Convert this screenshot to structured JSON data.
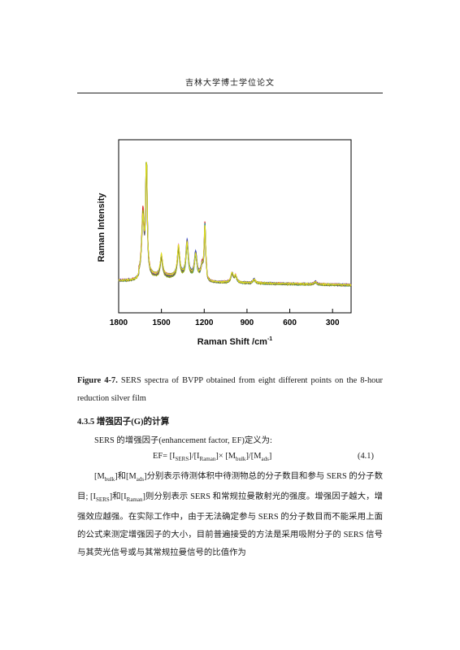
{
  "header": {
    "title": "吉林大学博士学位论文"
  },
  "chart_data": {
    "type": "line",
    "xlabel": "Raman Shift /cm",
    "xlabel_sup": "-1",
    "ylabel": "Raman Intensity",
    "xlim": [
      1800,
      170
    ],
    "x_ticks": [
      "1800",
      "1500",
      "1200",
      "900",
      "600",
      "300"
    ],
    "y_ticks_visible": false,
    "series_count": 8,
    "series_colors": [
      "#111111",
      "#d62020",
      "#2a44c8",
      "#ff33ff",
      "#20a0a0",
      "#9aa000",
      "#606060",
      "#e0e020"
    ],
    "peaks": [
      {
        "x": 1630,
        "y": 0.46
      },
      {
        "x": 1605,
        "y": 0.98
      },
      {
        "x": 1500,
        "y": 0.16
      },
      {
        "x": 1380,
        "y": 0.23
      },
      {
        "x": 1320,
        "y": 0.27
      },
      {
        "x": 1260,
        "y": 0.18
      },
      {
        "x": 1215,
        "y": 0.08
      },
      {
        "x": 1195,
        "y": 0.4
      },
      {
        "x": 1005,
        "y": 0.07
      },
      {
        "x": 980,
        "y": 0.05
      },
      {
        "x": 850,
        "y": 0.03
      },
      {
        "x": 420,
        "y": 0.02
      }
    ]
  },
  "caption": {
    "label": "Figure 4-7.",
    "text": " SERS spectra of BVPP obtained from eight different points on the 8-hour reduction silver film"
  },
  "section": {
    "heading": "4.3.5 增强因子(G)的计算"
  },
  "body": {
    "p1": "SERS 的增强因子(enhancement factor, EF)定义为:",
    "eq_lhs": "EF= [I",
    "eq_sub1": "SERS",
    "eq_mid1": "]/[I",
    "eq_sub2": "Raman",
    "eq_mid2": "]× [M",
    "eq_sub3": "bulk",
    "eq_mid3": "]/[M",
    "eq_sub4": "ads",
    "eq_end": "]",
    "eq_number": "(4.1)",
    "p2_a": "[M",
    "p2_sub_a": "bulk",
    "p2_b": "]和[M",
    "p2_sub_b": "ads",
    "p2_c": "]分别表示待测体积中待测物总的分子数目和参与 SERS 的分子数目; [I",
    "p2_sub_c": "SERS",
    "p2_d": "]和[I",
    "p2_sub_d": "Raman",
    "p2_e": "]则分别表示 SERS 和常规拉曼散射光的强度。增强因子越大，增强效应越强。在实际工作中，由于无法确定参与 SERS 的分子数目而不能采用上面的公式来测定增强因子的大小，目前普遍接受的方法是采用吸附分子的 SERS 信号与其荧光信号或与其常规拉曼信号的比值作为"
  }
}
